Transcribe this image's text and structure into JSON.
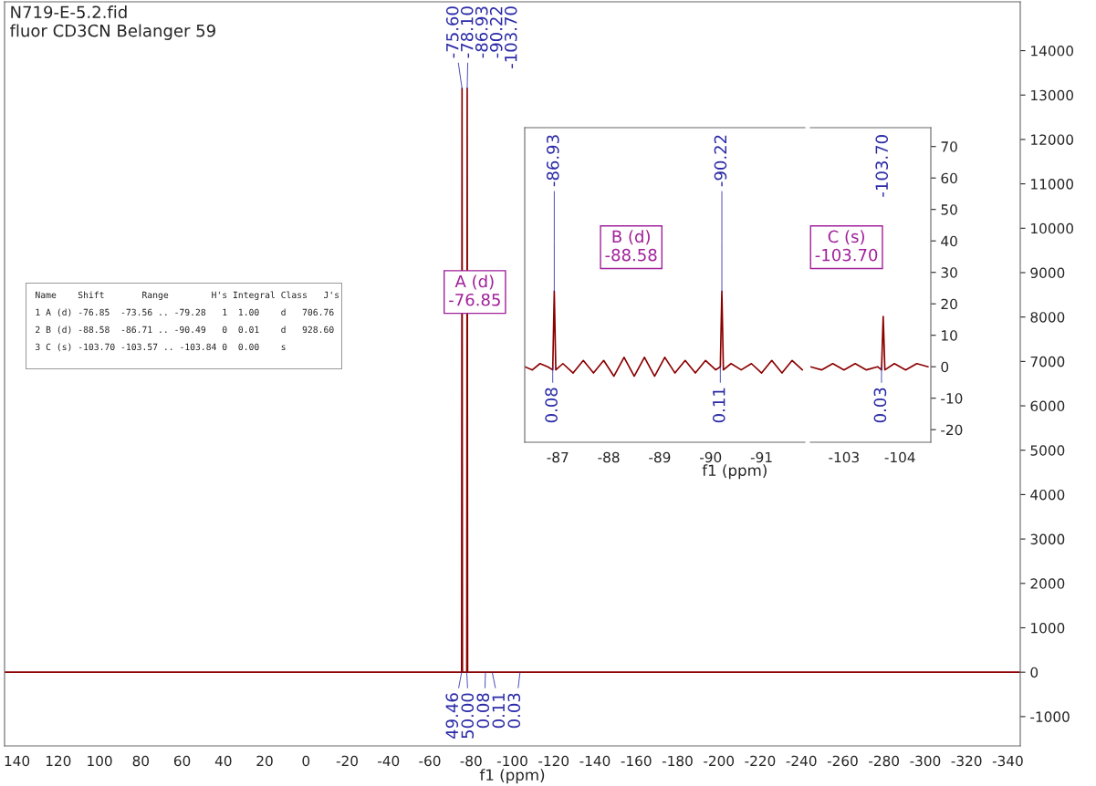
{
  "chart_data": [
    {
      "type": "line",
      "title": "N719-E-5.2.fid",
      "subtitle": "fluor CD3CN Belanger 59",
      "xlabel": "f1 (ppm)",
      "x": [
        146,
        -75.4,
        -75.6,
        -75.8,
        -77.9,
        -78.1,
        -78.3,
        -346
      ],
      "series": [
        {
          "color": "#8b0000",
          "values": [
            0,
            0,
            13150,
            0,
            0,
            13150,
            0,
            0
          ]
        }
      ],
      "xlim": [
        146,
        -346
      ],
      "xticks": [
        140,
        120,
        100,
        80,
        60,
        40,
        20,
        0,
        -20,
        -40,
        -60,
        -80,
        -100,
        -120,
        -140,
        -160,
        -180,
        -200,
        -220,
        -240,
        -260,
        -280,
        -300,
        -320,
        -340
      ],
      "ylim": [
        -1660,
        15100
      ],
      "yticks": [
        -1000,
        0,
        1000,
        2000,
        3000,
        4000,
        5000,
        6000,
        7000,
        8000,
        9000,
        10000,
        11000,
        12000,
        13000,
        14000
      ],
      "annotations": [
        {
          "text": "-75.60",
          "x": -75.6,
          "y": 13150
        },
        {
          "text": "-78.10",
          "x": -78.1,
          "y": 13150
        },
        {
          "text": "49.46",
          "x": -75.4,
          "y": 0
        },
        {
          "text": "50.00",
          "x": -77.9,
          "y": 0
        },
        {
          "text": "0.08",
          "x": -86.93,
          "y": 0
        },
        {
          "text": "0.11",
          "x": -90.22,
          "y": 0
        },
        {
          "text": "0.03",
          "x": -103.7,
          "y": 0
        },
        "-86.93",
        "-90.22",
        "-103.70",
        "A (d)\n-76.85"
      ]
    },
    {
      "type": "line",
      "xlabel": "f1 (ppm)",
      "tick_labels": "x",
      "x": [
        -86.35,
        -86.5,
        -86.65,
        -86.8,
        -86.9,
        -86.93,
        -86.96,
        -87.1,
        -87.3,
        -87.5,
        -87.7,
        -87.9,
        -88.1,
        -88.3,
        -88.5,
        -88.7,
        -88.9,
        -89.1,
        -89.3,
        -89.5,
        -89.7,
        -89.9,
        -90.1,
        -90.19,
        -90.22,
        -90.25,
        -90.4,
        -90.6,
        -90.8,
        -91.0,
        -91.2,
        -91.4,
        -91.6,
        -91.8
      ],
      "series": [
        {
          "color": "#8b0000",
          "values": [
            0,
            -1,
            1,
            0,
            -1,
            24,
            -1,
            1,
            -2,
            2,
            -2,
            2,
            -3,
            3,
            -3,
            3,
            -3,
            3,
            -2,
            2,
            -2,
            2,
            -1,
            0,
            24,
            -1,
            1,
            -1,
            1,
            -2,
            2,
            -2,
            2,
            -1
          ]
        }
      ],
      "xlim": [
        -86.35,
        -91.85
      ],
      "xticks": [
        -87,
        -88,
        -89,
        -90,
        -91
      ],
      "ylim": [
        -24,
        76
      ],
      "yticks": [
        -20,
        -10,
        0,
        10,
        20,
        30,
        40,
        50,
        60,
        70
      ],
      "annotations": [
        {
          "text": "-86.93",
          "x": -86.93,
          "y": 24
        },
        {
          "text": "-90.22",
          "x": -90.22,
          "y": 24
        },
        {
          "text": "0.08",
          "x": -86.9,
          "y": 0
        },
        {
          "text": "0.11",
          "x": -90.19,
          "y": 0
        },
        "B (d)\n-88.58"
      ]
    },
    {
      "type": "line",
      "x": [
        -102.4,
        -102.6,
        -102.8,
        -103.0,
        -103.2,
        -103.4,
        -103.6,
        -103.67,
        -103.7,
        -103.73,
        -103.9,
        -104.1,
        -104.3,
        -104.5
      ],
      "series": [
        {
          "color": "#8b0000",
          "values": [
            0,
            -1,
            1,
            -1,
            1,
            -1,
            0,
            -1,
            16,
            -1,
            1,
            -1,
            1,
            0
          ]
        }
      ],
      "xlim": [
        -102.4,
        -104.55
      ],
      "xticks": [
        -103,
        -104
      ],
      "ylim": [
        -24,
        76
      ],
      "yticks": [
        -20,
        -10,
        0,
        10,
        20,
        30,
        40,
        50,
        60,
        70
      ],
      "annotations": [
        "-103.70",
        {
          "text": "0.03",
          "x": -103.67,
          "y": 0
        },
        "C (s)\n-103.70"
      ]
    },
    {
      "type": "other",
      "annotations": [
        "Name    Shift       Range        H's Integral Class   J's",
        "1 A (d) -76.85  -73.56 .. -79.28   1  1.00    d   706.76",
        "2 B (d) -88.58  -86.71 .. -90.49   0  0.01    d   928.60",
        "3 C (s) -103.70 -103.57 .. -103.84 0  0.00    s"
      ]
    }
  ]
}
